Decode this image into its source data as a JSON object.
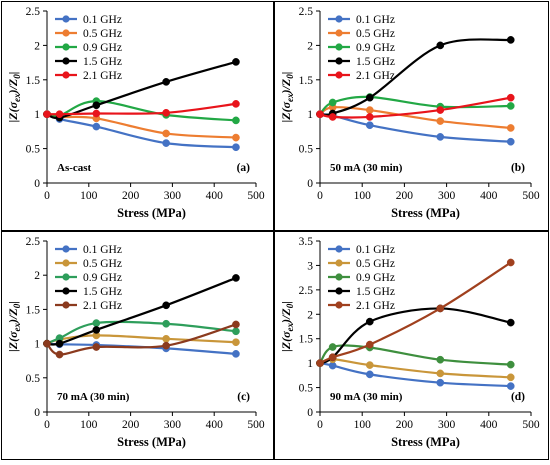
{
  "chart_data": [
    {
      "type": "line",
      "panel_label": "(a)",
      "annotation": "As-cast",
      "xlabel": "Stress (MPa)",
      "ylabel_parts": {
        "a": "|Z(",
        "b": "σ",
        "c": "ex",
        "d": ")/Z",
        "e": "0",
        "f": "|"
      },
      "xlim": [
        0,
        500
      ],
      "ylim": [
        0,
        2.5
      ],
      "xticks": [
        "0",
        "100",
        "200",
        "300",
        "400",
        "500"
      ],
      "yticks": [
        "0",
        "0.5",
        "1",
        "1.5",
        "2",
        "2.5"
      ],
      "legend_position": "top-left",
      "x": [
        0,
        30,
        118,
        285,
        452
      ],
      "series": [
        {
          "name": "0.1 GHz",
          "values": [
            1.0,
            0.93,
            0.82,
            0.58,
            0.52
          ]
        },
        {
          "name": "0.5 GHz",
          "values": [
            1.0,
            0.96,
            0.94,
            0.72,
            0.66
          ]
        },
        {
          "name": "0.9 GHz",
          "values": [
            1.0,
            0.98,
            1.19,
            0.99,
            0.91
          ]
        },
        {
          "name": "1.5 GHz",
          "values": [
            1.0,
            0.95,
            1.13,
            1.47,
            1.76
          ]
        },
        {
          "name": "2.1 GHz",
          "values": [
            1.0,
            1.0,
            1.01,
            1.02,
            1.15
          ]
        }
      ]
    },
    {
      "type": "line",
      "panel_label": "(b)",
      "annotation": "50 mA (30 min)",
      "xlabel": "Stress (MPa)",
      "ylabel_parts": {
        "a": "|Z(",
        "b": "σ",
        "c": "ex",
        "d": ")/Z",
        "e": "0",
        "f": "|"
      },
      "xlim": [
        0,
        500
      ],
      "ylim": [
        0,
        2.5
      ],
      "xticks": [
        "0",
        "100",
        "200",
        "300",
        "400",
        "500"
      ],
      "yticks": [
        "0",
        "0.5",
        "1",
        "1.5",
        "2",
        "2.5"
      ],
      "legend_position": "top-left",
      "x": [
        0,
        30,
        118,
        285,
        452
      ],
      "series": [
        {
          "name": "0.1 GHz",
          "values": [
            1.0,
            0.98,
            0.84,
            0.67,
            0.6
          ]
        },
        {
          "name": "0.5 GHz",
          "values": [
            1.0,
            1.1,
            1.06,
            0.9,
            0.8
          ]
        },
        {
          "name": "0.9 GHz",
          "values": [
            1.0,
            1.17,
            1.25,
            1.11,
            1.12
          ]
        },
        {
          "name": "1.5 GHz",
          "values": [
            1.0,
            1.01,
            1.24,
            2.0,
            2.08
          ]
        },
        {
          "name": "2.1 GHz",
          "values": [
            1.0,
            0.96,
            0.96,
            1.06,
            1.24
          ]
        }
      ]
    },
    {
      "type": "line",
      "panel_label": "(c)",
      "annotation": "70 mA (30 min)",
      "xlabel": "Stress (MPa)",
      "ylabel_parts": {
        "a": "|Z(",
        "b": "σ",
        "c": "ex",
        "d": ")/Z",
        "e": "0",
        "f": "|"
      },
      "xlim": [
        0,
        500
      ],
      "ylim": [
        0,
        2.5
      ],
      "xticks": [
        "0",
        "100",
        "200",
        "300",
        "400",
        "500"
      ],
      "yticks": [
        "0",
        "0.5",
        "1",
        "1.5",
        "2",
        "2.5"
      ],
      "legend_position": "top-left",
      "x": [
        0,
        30,
        118,
        285,
        452
      ],
      "series": [
        {
          "name": "0.1 GHz",
          "values": [
            1.0,
            0.99,
            0.98,
            0.93,
            0.85
          ]
        },
        {
          "name": "0.5 GHz",
          "values": [
            1.0,
            1.06,
            1.12,
            1.07,
            1.02
          ]
        },
        {
          "name": "0.9 GHz",
          "values": [
            1.0,
            1.08,
            1.3,
            1.29,
            1.18
          ]
        },
        {
          "name": "1.5 GHz",
          "values": [
            1.0,
            1.0,
            1.2,
            1.56,
            1.96
          ]
        },
        {
          "name": "2.1 GHz",
          "values": [
            1.0,
            0.84,
            0.95,
            0.97,
            1.28
          ]
        }
      ]
    },
    {
      "type": "line",
      "panel_label": "(d)",
      "annotation": "90 mA (30 min)",
      "xlabel": "Stress (MPa)",
      "ylabel_parts": {
        "a": "|Z(",
        "b": "σ",
        "c": "ex",
        "d": ")/Z",
        "e": "0",
        "f": "|"
      },
      "xlim": [
        0,
        500
      ],
      "ylim": [
        0,
        3.5
      ],
      "xticks": [
        "0",
        "100",
        "200",
        "300",
        "400",
        "500"
      ],
      "yticks": [
        "0",
        "0.5",
        "1",
        "1.5",
        "2",
        "2.5",
        "3",
        "3.5"
      ],
      "legend_position": "top-left",
      "x": [
        0,
        30,
        118,
        285,
        452
      ],
      "series": [
        {
          "name": "0.1 GHz",
          "values": [
            1.0,
            0.95,
            0.77,
            0.6,
            0.53
          ]
        },
        {
          "name": "0.5 GHz",
          "values": [
            1.0,
            1.08,
            0.96,
            0.79,
            0.71
          ]
        },
        {
          "name": "0.9 GHz",
          "values": [
            1.0,
            1.33,
            1.32,
            1.07,
            0.97
          ]
        },
        {
          "name": "1.5 GHz",
          "values": [
            1.0,
            1.12,
            1.85,
            2.12,
            1.83
          ]
        },
        {
          "name": "2.1 GHz",
          "values": [
            1.0,
            1.12,
            1.38,
            2.12,
            3.06
          ]
        }
      ]
    }
  ],
  "palettes": [
    [
      "#4472C4",
      "#ED7D31",
      "#22A845",
      "#000000",
      "#E8141B"
    ],
    [
      "#4472C4",
      "#ED7D31",
      "#22A845",
      "#000000",
      "#E8141B"
    ],
    [
      "#4472C4",
      "#C9963A",
      "#2E9E5B",
      "#000000",
      "#8B3A1E"
    ],
    [
      "#4472C4",
      "#C9963A",
      "#3E8F3E",
      "#000000",
      "#A0401E"
    ]
  ]
}
